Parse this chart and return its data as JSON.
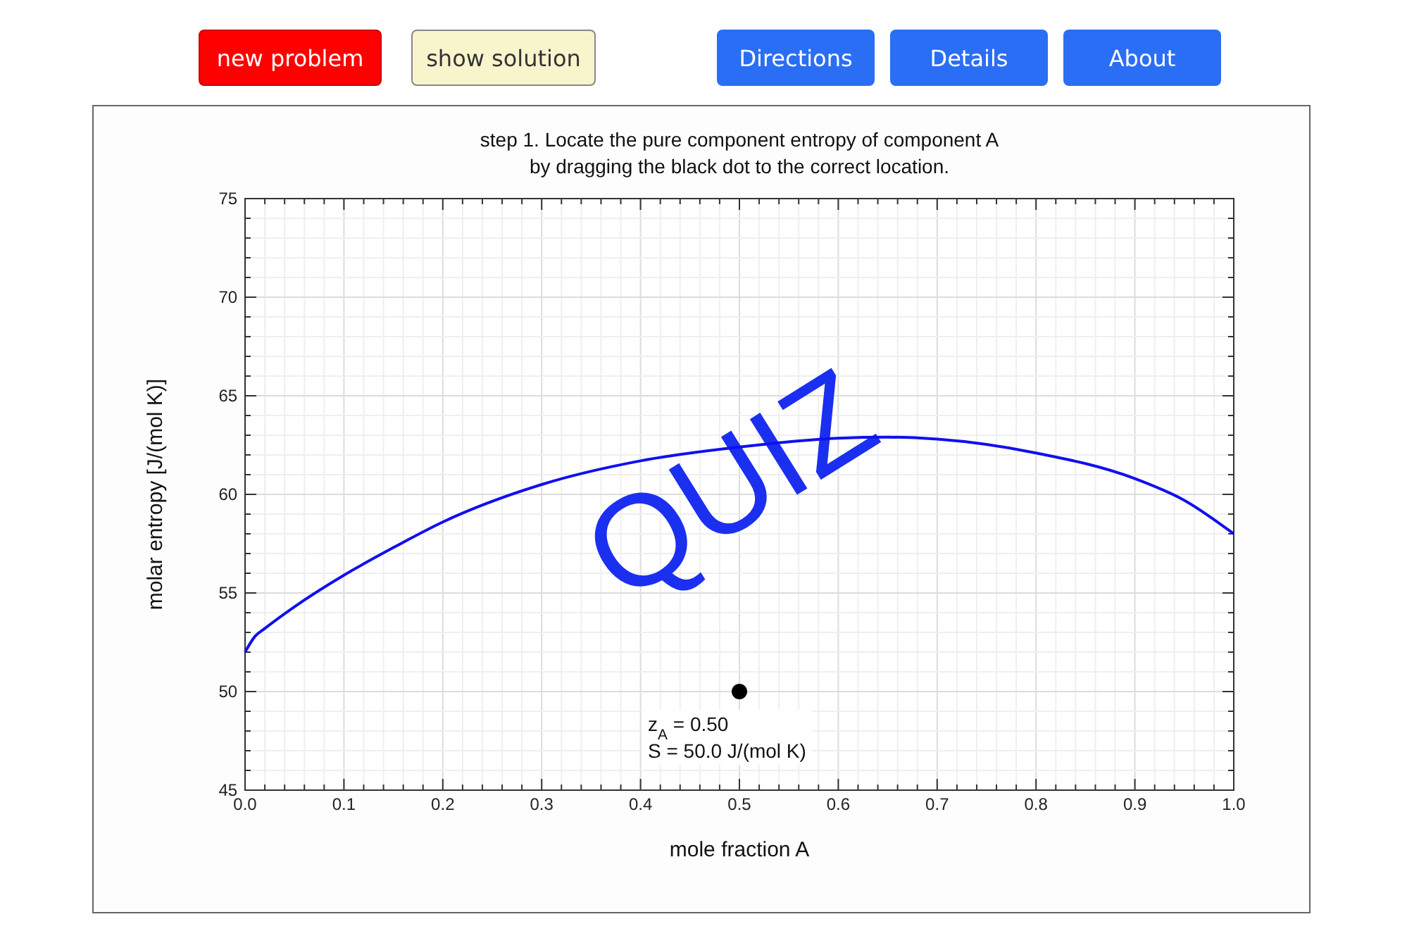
{
  "chart_data": {
    "type": "line",
    "title": "step 1. Locate the pure component entropy of component A\nby dragging the black dot to the correct location.",
    "xlabel": "mole fraction A",
    "ylabel": "molar entropy [J/(mol K)]",
    "series": [
      {
        "color": "#1010ee",
        "x": [
          0,
          0.01,
          0.02,
          0.05,
          0.1,
          0.15,
          0.2,
          0.3,
          0.4,
          0.5,
          0.6,
          0.65,
          0.7,
          0.8,
          0.9,
          0.95,
          1
        ],
        "values": [
          52,
          52.8,
          53.2,
          54.3,
          55.9,
          57.3,
          58.6,
          60.5,
          61.7,
          62.4,
          62.85,
          62.9,
          62.8,
          62.1,
          60.8,
          59.7,
          58
        ]
      },
      {
        "type": "scatter",
        "color": "#000000",
        "x": [
          0.5
        ],
        "values": [
          50
        ]
      }
    ],
    "annotations": [
      "new problem",
      "show solution",
      "Directions",
      "Details",
      "About",
      "QUIZ",
      {
        "text": "z$_{A}$ = 0.50\nS = 50.0 J/(mol K)",
        "x": 0.5,
        "y": 50
      }
    ],
    "xlim": [
      0,
      1
    ],
    "ylim": [
      45,
      75
    ],
    "xticks": [
      {
        "value": 0,
        "label": "0.0"
      },
      {
        "value": 0.02,
        "label": null
      },
      {
        "value": 0.04,
        "label": null
      },
      {
        "value": 0.06,
        "label": null
      },
      {
        "value": 0.08,
        "label": null
      },
      {
        "value": 0.1,
        "label": "0.1"
      },
      {
        "value": 0.12,
        "label": null
      },
      {
        "value": 0.14,
        "label": null
      },
      {
        "value": 0.16,
        "label": null
      },
      {
        "value": 0.18,
        "label": null
      },
      {
        "value": 0.2,
        "label": "0.2"
      },
      {
        "value": 0.22,
        "label": null
      },
      {
        "value": 0.24,
        "label": null
      },
      {
        "value": 0.26,
        "label": null
      },
      {
        "value": 0.28,
        "label": null
      },
      {
        "value": 0.3,
        "label": "0.3"
      },
      {
        "value": 0.32,
        "label": null
      },
      {
        "value": 0.34,
        "label": null
      },
      {
        "value": 0.36,
        "label": null
      },
      {
        "value": 0.38,
        "label": null
      },
      {
        "value": 0.4,
        "label": "0.4"
      },
      {
        "value": 0.42,
        "label": null
      },
      {
        "value": 0.44,
        "label": null
      },
      {
        "value": 0.46,
        "label": null
      },
      {
        "value": 0.48,
        "label": null
      },
      {
        "value": 0.5,
        "label": "0.5"
      },
      {
        "value": 0.52,
        "label": null
      },
      {
        "value": 0.54,
        "label": null
      },
      {
        "value": 0.56,
        "label": null
      },
      {
        "value": 0.58,
        "label": null
      },
      {
        "value": 0.6,
        "label": "0.6"
      },
      {
        "value": 0.62,
        "label": null
      },
      {
        "value": 0.64,
        "label": null
      },
      {
        "value": 0.66,
        "label": null
      },
      {
        "value": 0.68,
        "label": null
      },
      {
        "value": 0.7,
        "label": "0.7"
      },
      {
        "value": 0.72,
        "label": null
      },
      {
        "value": 0.74,
        "label": null
      },
      {
        "value": 0.76,
        "label": null
      },
      {
        "value": 0.78,
        "label": null
      },
      {
        "value": 0.8,
        "label": "0.8"
      },
      {
        "value": 0.82,
        "label": null
      },
      {
        "value": 0.84,
        "label": null
      },
      {
        "value": 0.86,
        "label": null
      },
      {
        "value": 0.88,
        "label": null
      },
      {
        "value": 0.9,
        "label": "0.9"
      },
      {
        "value": 0.92,
        "label": null
      },
      {
        "value": 0.94,
        "label": null
      },
      {
        "value": 0.96,
        "label": null
      },
      {
        "value": 0.98,
        "label": null
      },
      {
        "value": 1,
        "label": "1.0"
      }
    ],
    "yticks": [
      45,
      {
        "value": 46,
        "label": null
      },
      {
        "value": 47,
        "label": null
      },
      {
        "value": 48,
        "label": null
      },
      {
        "value": 49,
        "label": null
      },
      50,
      {
        "value": 51,
        "label": null
      },
      {
        "value": 52,
        "label": null
      },
      {
        "value": 53,
        "label": null
      },
      {
        "value": 54,
        "label": null
      },
      55,
      {
        "value": 56,
        "label": null
      },
      {
        "value": 57,
        "label": null
      },
      {
        "value": 58,
        "label": null
      },
      {
        "value": 59,
        "label": null
      },
      60,
      {
        "value": 61,
        "label": null
      },
      {
        "value": 62,
        "label": null
      },
      {
        "value": 63,
        "label": null
      },
      {
        "value": 64,
        "label": null
      },
      65,
      {
        "value": 66,
        "label": null
      },
      {
        "value": 67,
        "label": null
      },
      {
        "value": 68,
        "label": null
      },
      {
        "value": 69,
        "label": null
      },
      70,
      {
        "value": 71,
        "label": null
      },
      {
        "value": 72,
        "label": null
      },
      {
        "value": 73,
        "label": null
      },
      {
        "value": 74,
        "label": null
      },
      75
    ],
    "grid": true
  }
}
